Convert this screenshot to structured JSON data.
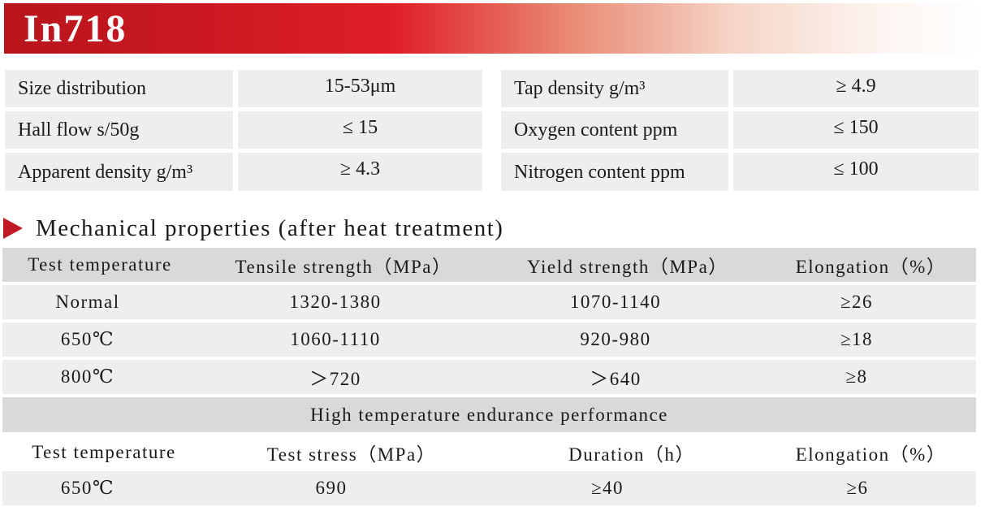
{
  "title": "In718",
  "properties": {
    "left": [
      {
        "label": "Size distribution",
        "value": "15-53μm"
      },
      {
        "label": "Hall flow s/50g",
        "value": "≤ 15"
      },
      {
        "label": "Apparent density g/m³",
        "value": "≥ 4.3"
      }
    ],
    "right": [
      {
        "label": "Tap density g/m³",
        "value": "≥ 4.9"
      },
      {
        "label": "Oxygen content ppm",
        "value": "≤ 150"
      },
      {
        "label": "Nitrogen content ppm",
        "value": "≤ 100"
      }
    ]
  },
  "mechanical": {
    "heading": "Mechanical properties (after heat treatment)",
    "columns": [
      "Test temperature",
      "Tensile strength（MPa）",
      "Yield strength（MPa）",
      "Elongation（%）"
    ],
    "rows": [
      [
        "Normal",
        "1320-1380",
        "1070-1140",
        "≥26"
      ],
      [
        "650℃",
        "1060-1110",
        "920-980",
        "≥18"
      ],
      [
        "800℃",
        "＞720",
        "＞640",
        "≥8"
      ]
    ]
  },
  "endurance": {
    "title": "High temperature endurance performance",
    "columns": [
      "Test temperature",
      "Test stress（MPa）",
      "Duration（h）",
      "Elongation（%）"
    ],
    "rows": [
      [
        "650℃",
        "690",
        "≥40",
        "≥6"
      ]
    ]
  }
}
